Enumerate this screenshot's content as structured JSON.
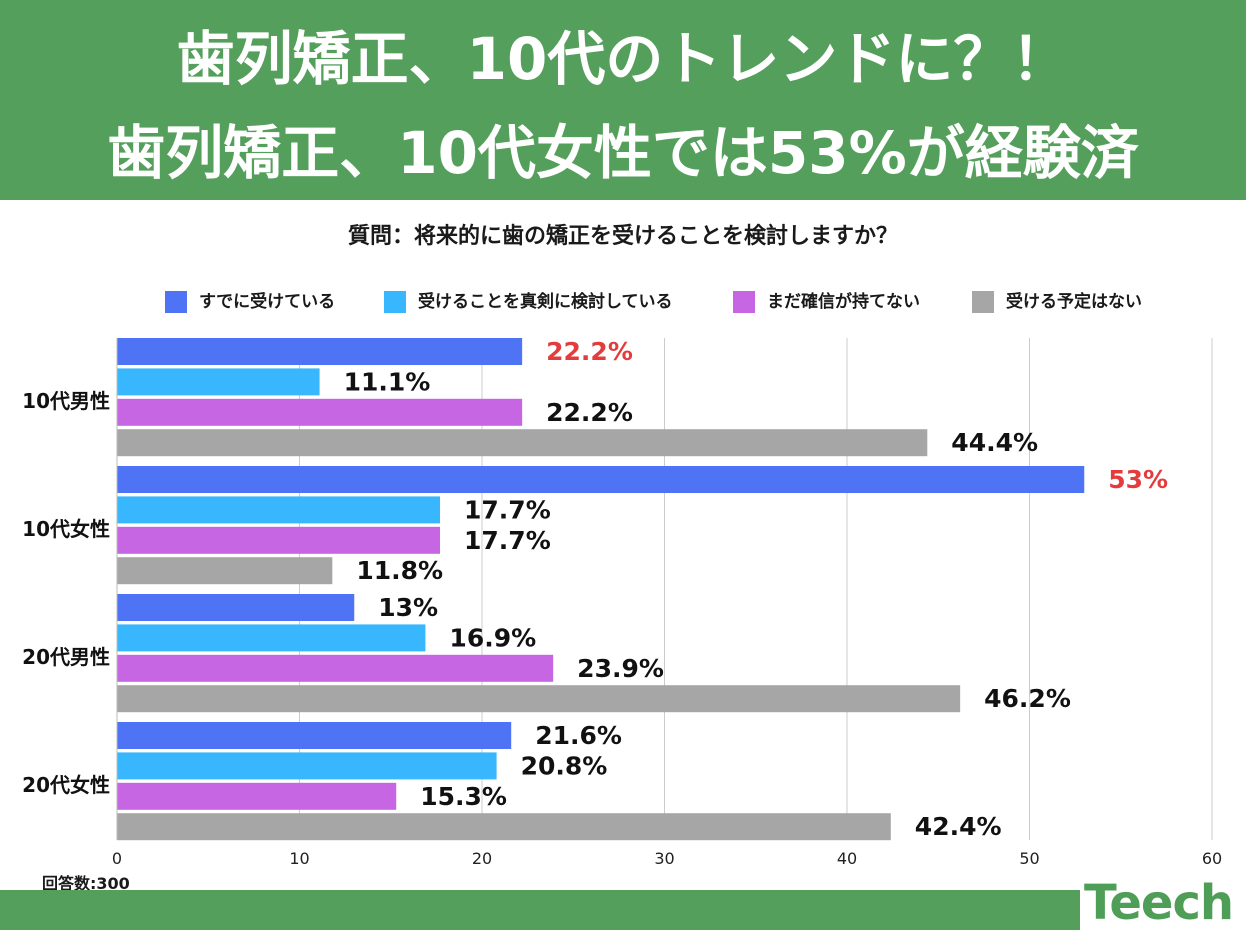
{
  "header": {
    "title_line1": "歯列矯正、10代のトレンドに？！",
    "title_line2": "歯列矯正、10代女性では53%が経験済"
  },
  "question": "質問：将来的に歯の矯正を受けることを検討しますか？",
  "sample_size": "回答数:300",
  "logo": "Teech",
  "colors": {
    "header_bg": "#559f5c",
    "highlight_label": "#e43c3c",
    "grid": "#cccccc"
  },
  "chart_data": {
    "type": "bar",
    "orientation": "horizontal",
    "title": "質問：将来的に歯の矯正を受けることを検討しますか？",
    "xlabel": "",
    "ylabel": "",
    "xlim": [
      0,
      60
    ],
    "x_ticks": [
      0,
      10,
      20,
      30,
      40,
      50,
      60
    ],
    "grid": true,
    "legend_position": "top",
    "categories": [
      "10代男性",
      "10代女性",
      "20代男性",
      "20代女性"
    ],
    "series": [
      {
        "name": "すでに受けている",
        "color": "#4e73f5",
        "values": [
          22.2,
          53,
          13,
          21.6
        ],
        "labels": [
          "22.2%",
          "53%",
          "13%",
          "21.6%"
        ],
        "label_highlight": [
          true,
          true,
          false,
          false
        ]
      },
      {
        "name": "受けることを真剣に検討している",
        "color": "#38b7ff",
        "values": [
          11.1,
          17.7,
          16.9,
          20.8
        ],
        "labels": [
          "11.1%",
          "17.7%",
          "16.9%",
          "20.8%"
        ],
        "label_highlight": [
          false,
          false,
          false,
          false
        ]
      },
      {
        "name": "まだ確信が持てない",
        "color": "#c666e3",
        "values": [
          22.2,
          17.7,
          23.9,
          15.3
        ],
        "labels": [
          "22.2%",
          "17.7%",
          "23.9%",
          "15.3%"
        ],
        "label_highlight": [
          false,
          false,
          false,
          false
        ]
      },
      {
        "name": "受ける予定はない",
        "color": "#a6a6a6",
        "values": [
          44.4,
          11.8,
          46.2,
          42.4
        ],
        "labels": [
          "44.4%",
          "11.8%",
          "46.2%",
          "42.4%"
        ],
        "label_highlight": [
          false,
          false,
          false,
          false
        ]
      }
    ]
  }
}
